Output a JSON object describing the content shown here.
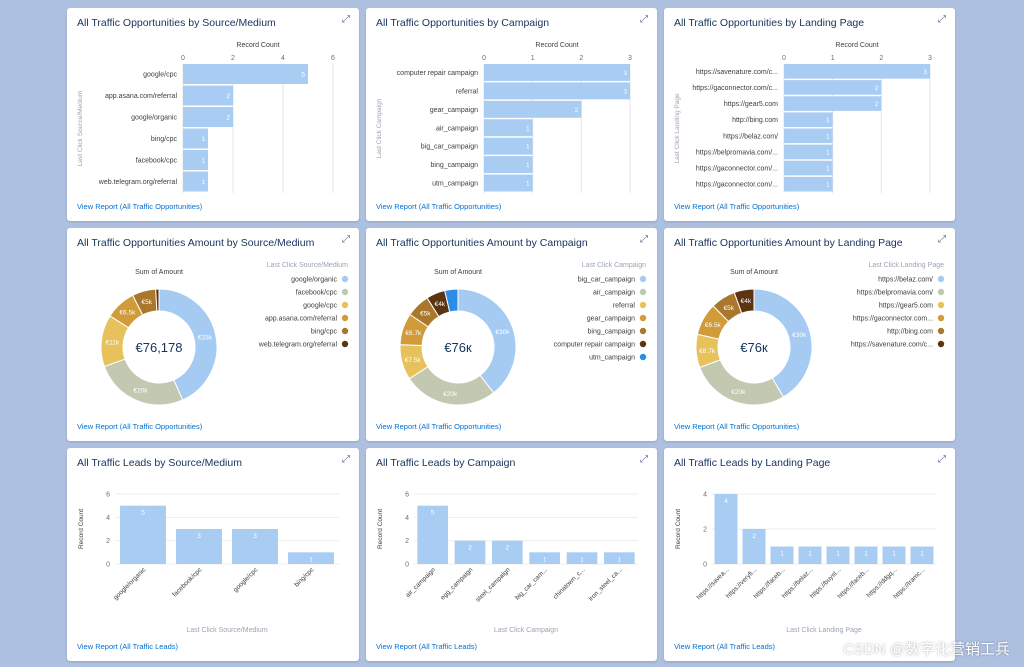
{
  "colors": {
    "bar": "#a8ccf2",
    "donut": [
      "#a6cbf3",
      "#c3c9b0",
      "#e7c15c",
      "#d19b39",
      "#a9782c",
      "#5c3411",
      "#2d8de6"
    ]
  },
  "cards": [
    {
      "title": "All Traffic Opportunities by Source/Medium",
      "link": "View Report (All Traffic Opportunities)",
      "chart_data": {
        "type": "bar",
        "orientation": "horizontal",
        "axis_title": "Record Count",
        "ylabel": "Last Click Source/Medium",
        "ticks": [
          "0",
          "2",
          "4",
          "6"
        ],
        "xlim": [
          0,
          6
        ],
        "categories": [
          "google/cpc",
          "app.asana.com/referral",
          "google/organic",
          "bing/cpc",
          "facebook/cpc",
          "web.telegram.org/referral"
        ],
        "values": [
          5,
          2,
          2,
          1,
          1,
          1
        ],
        "value_labels": [
          "5",
          "2",
          "2",
          "1",
          "1",
          "1"
        ]
      }
    },
    {
      "title": "All Traffic Opportunities by Campaign",
      "link": "View Report (All Traffic Opportunities)",
      "chart_data": {
        "type": "bar",
        "orientation": "horizontal",
        "axis_title": "Record Count",
        "ylabel": "Last Click Campaign",
        "ticks": [
          "0",
          "1",
          "2",
          "3"
        ],
        "xlim": [
          0,
          3
        ],
        "categories": [
          "computer repair campaign",
          "referral",
          "gear_campaign",
          "air_campaign",
          "big_car_campaign",
          "bing_campaign",
          "utm_campaign"
        ],
        "values": [
          3,
          3,
          2,
          1,
          1,
          1,
          1
        ],
        "value_labels": [
          "3",
          "3",
          "2",
          "1",
          "1",
          "1",
          "1"
        ]
      }
    },
    {
      "title": "All Traffic Opportunities by Landing Page",
      "link": "View Report (All Traffic Opportunities)",
      "chart_data": {
        "type": "bar",
        "orientation": "horizontal",
        "axis_title": "Record Count",
        "ylabel": "Last Click Landing Page",
        "ticks": [
          "0",
          "1",
          "2",
          "3"
        ],
        "xlim": [
          0,
          3
        ],
        "categories": [
          "https://savenature.com/c...",
          "https://gaconnector.com/c...",
          "https://gear5.com",
          "http://bing.com",
          "https://belaz.com/",
          "https://belpromavia.com/...",
          "https://gaconnector.com/...",
          "https://gaconnector.com/..."
        ],
        "values": [
          3,
          2,
          2,
          1,
          1,
          1,
          1,
          1
        ],
        "value_labels": [
          "3",
          "2",
          "2",
          "1",
          "1",
          "1",
          "1",
          "1"
        ]
      }
    },
    {
      "title": "All Traffic Opportunities Amount by Source/Medium",
      "link": "View Report (All Traffic Opportunities)",
      "chart_data": {
        "type": "pie",
        "donut": true,
        "label": "Sum of Amount",
        "center": "€76,178",
        "legend_title": "Last Click Source/Medium",
        "categories": [
          "google/organic",
          "facebook/cpc",
          "google/cpc",
          "app.asana.com/referral",
          "bing/cpc",
          "web.telegram.org/referral"
        ],
        "values": [
          33,
          20,
          11,
          6.5,
          5,
          0.7
        ],
        "slice_labels": [
          "€33k",
          "€20k",
          "€11k",
          "€6.5k",
          "€5k",
          ""
        ]
      }
    },
    {
      "title": "All Traffic Opportunities Amount by Campaign",
      "link": "View Report (All Traffic Opportunities)",
      "chart_data": {
        "type": "pie",
        "donut": true,
        "label": "Sum of Amount",
        "center": "€76к",
        "legend_title": "Last Click Campaign",
        "categories": [
          "big_car_campaign",
          "air_campaign",
          "referral",
          "gear_campaign",
          "bing_campaign",
          "computer repair campaign",
          "utm_campaign"
        ],
        "values": [
          30,
          20,
          7.5,
          6.7,
          5,
          4,
          2.8
        ],
        "slice_labels": [
          "€30k",
          "€20k",
          "€7.5k",
          "€6.7k",
          "€5k",
          "€4k",
          ""
        ]
      }
    },
    {
      "title": "All Traffic Opportunities Amount by Landing Page",
      "link": "View Report (All Traffic Opportunities)",
      "chart_data": {
        "type": "pie",
        "donut": true,
        "label": "Sum of Amount",
        "center": "€76к",
        "legend_title": "Last Click Landing Page",
        "categories": [
          "https://belaz.com/",
          "https://belpromavia.com/",
          "https://gear5.com",
          "https://gaconnector.com...",
          "http://bing.com",
          "https://savenature.com/c..."
        ],
        "values": [
          30,
          20,
          6.7,
          6.5,
          5,
          4
        ],
        "slice_labels": [
          "€30k",
          "€20k",
          "€6.7k",
          "€6.5k",
          "€5k",
          "€4k"
        ]
      }
    },
    {
      "title": "All Traffic Leads by Source/Medium",
      "link": "View Report (All Traffic Leads)",
      "chart_data": {
        "type": "bar",
        "orientation": "vertical",
        "ylabel": "Record Count",
        "xlabel": "Last Click Source/Medium",
        "ticks": [
          "0",
          "2",
          "4",
          "6"
        ],
        "ylim": [
          0,
          6
        ],
        "categories": [
          "google/organic",
          "facebook/cpc",
          "google/cpc",
          "bing/cpc"
        ],
        "values": [
          5,
          3,
          3,
          1
        ],
        "value_labels": [
          "5",
          "3",
          "3",
          "1"
        ]
      }
    },
    {
      "title": "All Traffic Leads by Campaign",
      "link": "View Report (All Traffic Leads)",
      "chart_data": {
        "type": "bar",
        "orientation": "vertical",
        "ylabel": "Record Count",
        "xlabel": "Last Click Campaign",
        "ticks": [
          "0",
          "2",
          "4",
          "6"
        ],
        "ylim": [
          0,
          6
        ],
        "categories": [
          "air_campaign",
          "egg_campaign",
          "steel_campaign",
          "big_car_cam...",
          "chinatown_c...",
          "iron_steel_ca..."
        ],
        "values": [
          5,
          2,
          2,
          1,
          1,
          1
        ],
        "value_labels": [
          "5",
          "2",
          "2",
          "1",
          "1",
          "1"
        ]
      }
    },
    {
      "title": "All Traffic Leads by Landing Page",
      "link": "View Report (All Traffic Leads)",
      "chart_data": {
        "type": "bar",
        "orientation": "vertical",
        "ylabel": "Record Count",
        "xlabel": "Last Click Landing Page",
        "ticks": [
          "0",
          "2",
          "4"
        ],
        "ylim": [
          0,
          4
        ],
        "categories": [
          "https://savea...",
          "https://veryfi...",
          "https://faceb...",
          "https://belaz...",
          "https://buyst...",
          "https://faceb...",
          "https://ddgq...",
          "https://tramc..."
        ],
        "values": [
          4,
          2,
          1,
          1,
          1,
          1,
          1,
          1
        ],
        "value_labels": [
          "4",
          "2",
          "1",
          "1",
          "1",
          "1",
          "1",
          "1"
        ]
      }
    }
  ],
  "watermark": "CSDN @数字化营销工兵"
}
